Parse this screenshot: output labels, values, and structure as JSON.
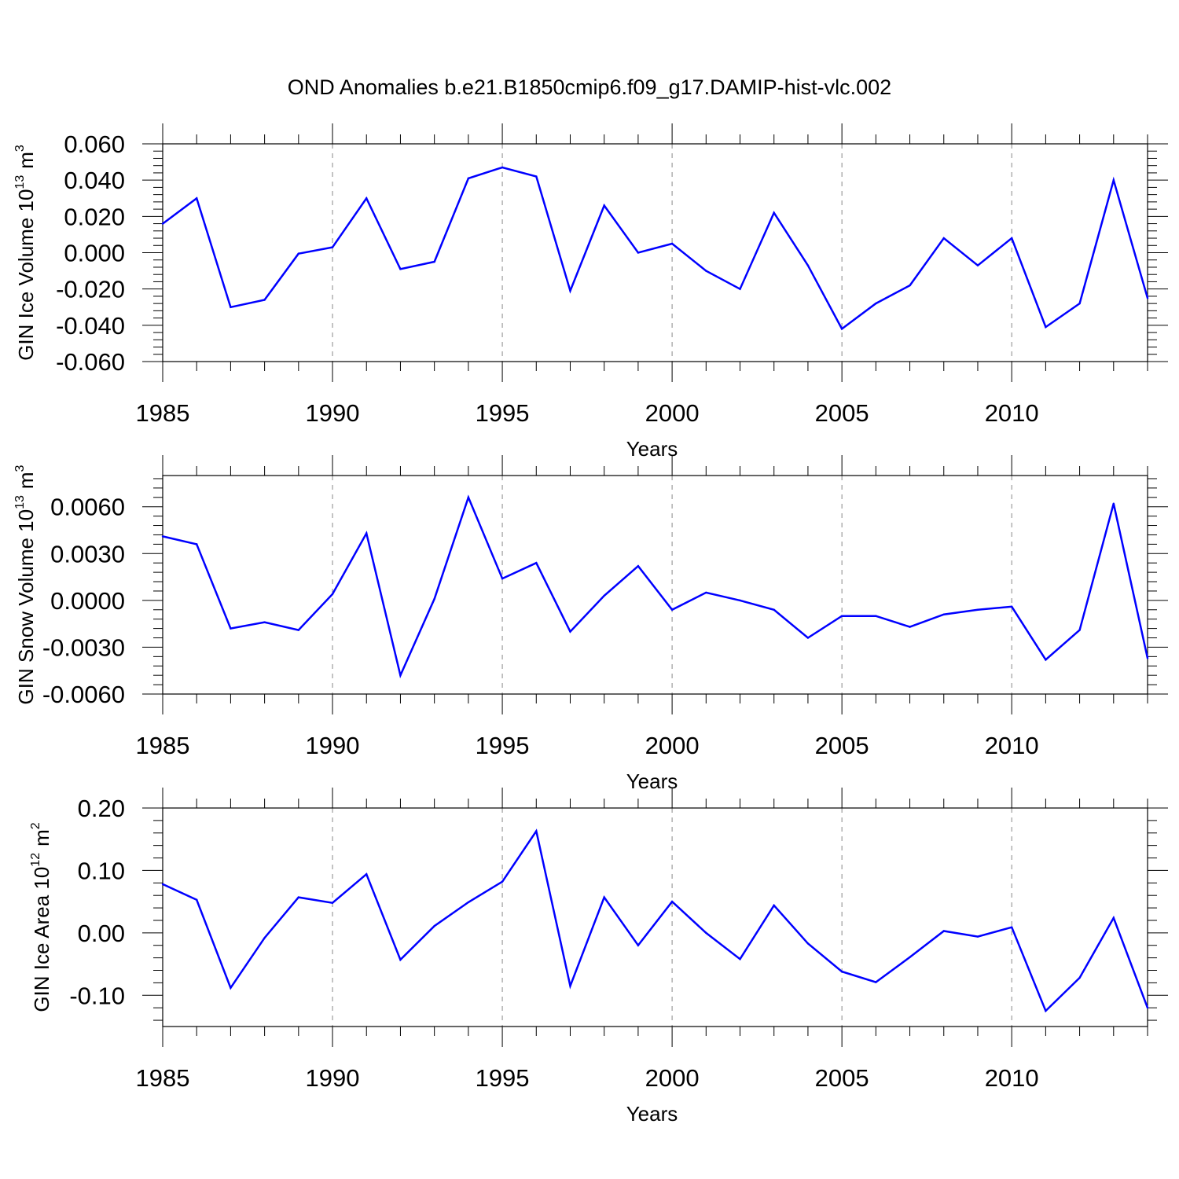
{
  "figure": {
    "title": "OND Anomalies b.e21.B1850cmip6.f09_g17.DAMIP-hist-vlc.002"
  },
  "chart_data": [
    {
      "type": "line",
      "ylabel": "GIN Ice Volume 10",
      "ylabel_sup": "13",
      "ylabel_unit": "m",
      "ylabel_unit_sup": "3",
      "xlabel": "Years",
      "xlim": [
        1985,
        2014
      ],
      "ylim": [
        -0.06,
        0.06
      ],
      "yticks": [
        -0.06,
        -0.04,
        -0.02,
        0.0,
        0.02,
        0.04,
        0.06
      ],
      "ytick_labels": [
        "-0.060",
        "-0.040",
        "-0.020",
        "0.000",
        "0.020",
        "0.040",
        "0.060"
      ],
      "xticks": [
        1985,
        1990,
        1995,
        2000,
        2005,
        2010
      ],
      "xtick_labels": [
        "1985",
        "1990",
        "1995",
        "2000",
        "2005",
        "2010"
      ],
      "grid": "dashed vertical at major x ticks",
      "color": "#0000ff",
      "x": [
        1985,
        1986,
        1987,
        1988,
        1989,
        1990,
        1991,
        1992,
        1993,
        1994,
        1995,
        1996,
        1997,
        1998,
        1999,
        2000,
        2001,
        2002,
        2003,
        2004,
        2005,
        2006,
        2007,
        2008,
        2009,
        2010,
        2011,
        2012,
        2013,
        2014
      ],
      "y": [
        0.016,
        0.03,
        -0.03,
        -0.026,
        -0.0005,
        0.003,
        0.03,
        -0.009,
        -0.005,
        0.041,
        0.047,
        0.042,
        -0.021,
        0.026,
        0.0,
        0.005,
        -0.01,
        -0.02,
        0.022,
        -0.007,
        -0.042,
        -0.028,
        -0.018,
        0.008,
        -0.007,
        0.008,
        -0.041,
        -0.028,
        0.04,
        -0.025
      ]
    },
    {
      "type": "line",
      "ylabel": "GIN Snow Volume 10",
      "ylabel_sup": "13",
      "ylabel_unit": "m",
      "ylabel_unit_sup": "3",
      "xlabel": "Years",
      "xlim": [
        1985,
        2014
      ],
      "ylim": [
        -0.006,
        0.008
      ],
      "yticks": [
        -0.006,
        -0.003,
        0.0,
        0.003,
        0.006
      ],
      "ytick_labels": [
        "-0.0060",
        "-0.0030",
        "0.0000",
        "0.0030",
        "0.0060"
      ],
      "xticks": [
        1985,
        1990,
        1995,
        2000,
        2005,
        2010
      ],
      "xtick_labels": [
        "1985",
        "1990",
        "1995",
        "2000",
        "2005",
        "2010"
      ],
      "grid": "dashed vertical at major x ticks",
      "color": "#0000ff",
      "x": [
        1985,
        1986,
        1987,
        1988,
        1989,
        1990,
        1991,
        1992,
        1993,
        1994,
        1995,
        1996,
        1997,
        1998,
        1999,
        2000,
        2001,
        2002,
        2003,
        2004,
        2005,
        2006,
        2007,
        2008,
        2009,
        2010,
        2011,
        2012,
        2013,
        2014
      ],
      "y": [
        0.0041,
        0.0036,
        -0.0018,
        -0.0014,
        -0.0019,
        0.0004,
        0.0043,
        -0.0048,
        0.0001,
        0.0066,
        0.0014,
        0.0024,
        -0.002,
        0.0003,
        0.0022,
        -0.0006,
        0.0005,
        0.0,
        -0.0006,
        -0.0024,
        -0.001,
        -0.001,
        -0.0017,
        -0.0009,
        -0.0006,
        -0.0004,
        -0.0038,
        -0.0019,
        0.0062,
        -0.0037
      ]
    },
    {
      "type": "line",
      "ylabel": "GIN Ice Area 10",
      "ylabel_sup": "12",
      "ylabel_unit": "m",
      "ylabel_unit_sup": "2",
      "xlabel": "Years",
      "xlim": [
        1985,
        2014
      ],
      "ylim": [
        -0.15,
        0.2
      ],
      "yticks": [
        -0.1,
        0.0,
        0.1,
        0.2
      ],
      "ytick_labels": [
        "-0.10",
        "0.00",
        "0.10",
        "0.20"
      ],
      "xticks": [
        1985,
        1990,
        1995,
        2000,
        2005,
        2010
      ],
      "xtick_labels": [
        "1985",
        "1990",
        "1995",
        "2000",
        "2005",
        "2010"
      ],
      "grid": "dashed vertical at major x ticks",
      "color": "#0000ff",
      "x": [
        1985,
        1986,
        1987,
        1988,
        1989,
        1990,
        1991,
        1992,
        1993,
        1994,
        1995,
        1996,
        1997,
        1998,
        1999,
        2000,
        2001,
        2002,
        2003,
        2004,
        2005,
        2006,
        2007,
        2008,
        2009,
        2010,
        2011,
        2012,
        2013,
        2014
      ],
      "y": [
        0.078,
        0.053,
        -0.088,
        -0.008,
        0.057,
        0.048,
        0.094,
        -0.043,
        0.011,
        0.049,
        0.082,
        0.163,
        -0.085,
        0.057,
        -0.02,
        0.05,
        0.0,
        -0.042,
        0.044,
        -0.017,
        -0.062,
        -0.079,
        -0.039,
        0.003,
        -0.006,
        0.009,
        -0.125,
        -0.072,
        0.024,
        -0.12
      ]
    }
  ]
}
